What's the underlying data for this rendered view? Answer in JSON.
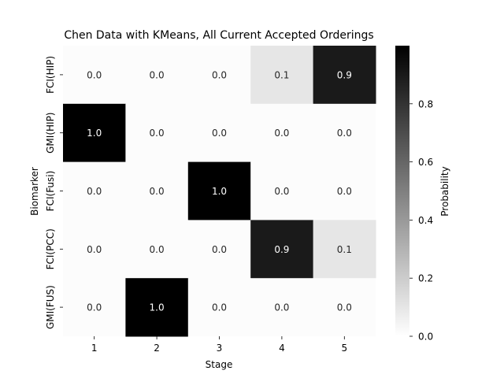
{
  "chart_data": {
    "type": "heatmap",
    "title": "Chen Data with KMeans, All Current Accepted Orderings",
    "xlabel": "Stage",
    "ylabel": "Biomarker",
    "x_categories": [
      "1",
      "2",
      "3",
      "4",
      "5"
    ],
    "y_categories": [
      "FCI(HIP)",
      "GMI(HIP)",
      "FCI(Fusi)",
      "FCI(PCC)",
      "GMI(FUS)"
    ],
    "values": [
      [
        0.0,
        0.0,
        0.0,
        0.1,
        0.9
      ],
      [
        1.0,
        0.0,
        0.0,
        0.0,
        0.0
      ],
      [
        0.0,
        0.0,
        1.0,
        0.0,
        0.0
      ],
      [
        0.0,
        0.0,
        0.0,
        0.9,
        0.1
      ],
      [
        0.0,
        1.0,
        0.0,
        0.0,
        0.0
      ]
    ],
    "cell_labels": [
      [
        "0.0",
        "0.0",
        "0.0",
        "0.1",
        "0.9"
      ],
      [
        "1.0",
        "0.0",
        "0.0",
        "0.0",
        "0.0"
      ],
      [
        "0.0",
        "0.0",
        "1.0",
        "0.0",
        "0.0"
      ],
      [
        "0.0",
        "0.0",
        "0.0",
        "0.9",
        "0.1"
      ],
      [
        "0.0",
        "1.0",
        "0.0",
        "0.0",
        "0.0"
      ]
    ],
    "colormap": {
      "low_color": "#ffffff",
      "high_color": "#000000"
    },
    "colorbar": {
      "label": "Probability",
      "range": [
        0.0,
        1.0
      ],
      "ticks": [
        0.0,
        0.2,
        0.4,
        0.6,
        0.8
      ],
      "tick_labels": [
        "0.0",
        "0.2",
        "0.4",
        "0.6",
        "0.8"
      ],
      "placement": "right"
    },
    "grid": false
  }
}
